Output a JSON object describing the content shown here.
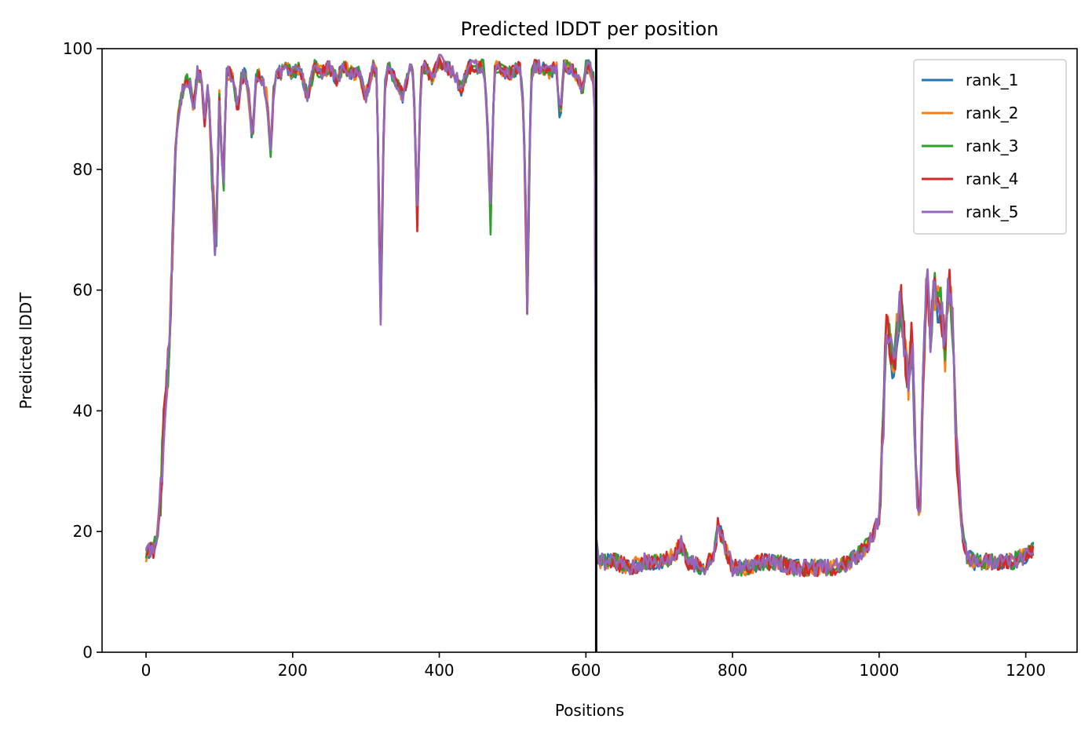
{
  "chart_data": {
    "type": "line",
    "title": "Predicted lDDT per position",
    "xlabel": "Positions",
    "ylabel": "Predicted lDDT",
    "xlim": [
      -60,
      1270
    ],
    "ylim": [
      0,
      100
    ],
    "xticks": [
      0,
      200,
      400,
      600,
      800,
      1000,
      1200
    ],
    "yticks": [
      0,
      20,
      40,
      60,
      80,
      100
    ],
    "grid": false,
    "legend_position": "top-right",
    "chain_break": 614,
    "profile": {
      "x": [
        0,
        5,
        10,
        15,
        20,
        25,
        30,
        35,
        40,
        45,
        50,
        55,
        60,
        65,
        70,
        75,
        80,
        85,
        90,
        95,
        100,
        105,
        110,
        115,
        120,
        125,
        130,
        135,
        140,
        145,
        150,
        155,
        160,
        165,
        170,
        175,
        180,
        185,
        190,
        200,
        210,
        220,
        230,
        240,
        250,
        260,
        270,
        280,
        290,
        300,
        310,
        315,
        320,
        325,
        330,
        340,
        350,
        360,
        365,
        370,
        375,
        380,
        390,
        400,
        410,
        420,
        430,
        440,
        450,
        460,
        465,
        470,
        475,
        480,
        490,
        500,
        510,
        515,
        520,
        525,
        530,
        540,
        550,
        560,
        565,
        570,
        580,
        590,
        595,
        600,
        605,
        610,
        613,
        614,
        616,
        620,
        640,
        660,
        680,
        700,
        720,
        730,
        740,
        760,
        775,
        780,
        800,
        820,
        840,
        860,
        880,
        900,
        920,
        940,
        960,
        970,
        980,
        990,
        1000,
        1005,
        1010,
        1015,
        1020,
        1025,
        1030,
        1035,
        1040,
        1045,
        1050,
        1055,
        1060,
        1065,
        1070,
        1075,
        1080,
        1085,
        1090,
        1095,
        1100,
        1105,
        1110,
        1115,
        1120,
        1130,
        1140,
        1160,
        1180,
        1200,
        1210
      ],
      "y": [
        16,
        17,
        17,
        19,
        26,
        40,
        47,
        62,
        83,
        90,
        93,
        95,
        94,
        90,
        96,
        95,
        88,
        94,
        80,
        65,
        92,
        75,
        96,
        96,
        94,
        90,
        95,
        96,
        92,
        85,
        95,
        96,
        94,
        92,
        83,
        95,
        96,
        96,
        97,
        96,
        97,
        92,
        97,
        96,
        97,
        95,
        97,
        96,
        96,
        92,
        97,
        96,
        55,
        93,
        97,
        95,
        92,
        97,
        95,
        72,
        96,
        97,
        95,
        98,
        97,
        96,
        93,
        97,
        97,
        97,
        90,
        72,
        97,
        97,
        96,
        96,
        97,
        90,
        59,
        95,
        97,
        97,
        96,
        97,
        88,
        97,
        97,
        95,
        93,
        97,
        97,
        95,
        88,
        18,
        16,
        15,
        15,
        14,
        15,
        15,
        16,
        18,
        15,
        14,
        16,
        21,
        14,
        14,
        15,
        15,
        14,
        14,
        14,
        14,
        15,
        16,
        17,
        19,
        22,
        35,
        55,
        50,
        47,
        54,
        58,
        50,
        45,
        54,
        30,
        22,
        45,
        62,
        53,
        60,
        58,
        57,
        50,
        62,
        55,
        35,
        25,
        18,
        16,
        15,
        15,
        15,
        15,
        16,
        17
      ]
    },
    "series": [
      {
        "name": "rank_1",
        "color": "#1f77b4"
      },
      {
        "name": "rank_2",
        "color": "#ff7f0e"
      },
      {
        "name": "rank_3",
        "color": "#2ca02c"
      },
      {
        "name": "rank_4",
        "color": "#d62728"
      },
      {
        "name": "rank_5",
        "color": "#9467bd"
      }
    ]
  }
}
